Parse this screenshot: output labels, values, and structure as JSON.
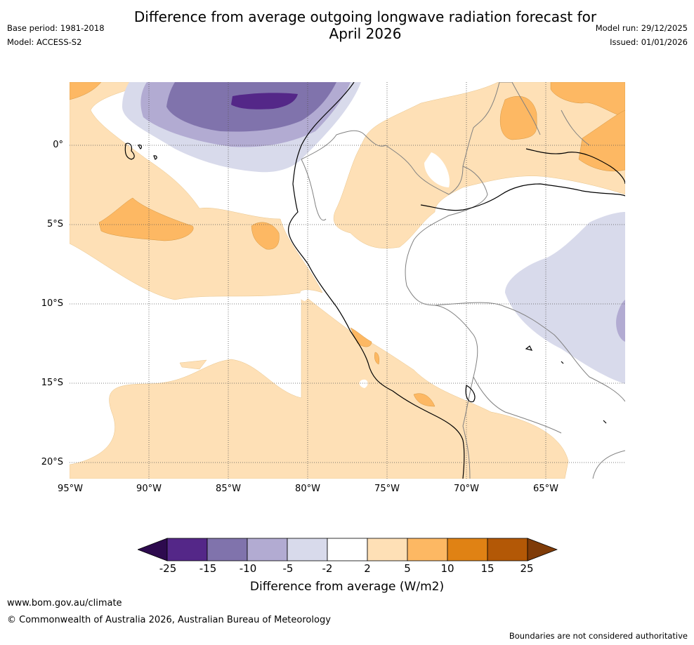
{
  "title": {
    "line1": "Difference from average outgoing longwave radiation forecast for",
    "line2": "April 2026"
  },
  "meta_left": {
    "base_period": "Base period: 1981-2018",
    "model": "Model: ACCESS-S2"
  },
  "meta_right": {
    "model_run": "Model run: 29/12/2025",
    "issued": "Issued: 01/01/2026"
  },
  "map": {
    "lat_labels": [
      "0°",
      "5°S",
      "10°S",
      "15°S",
      "20°S"
    ],
    "lon_labels": [
      "95°W",
      "90°W",
      "85°W",
      "80°W",
      "75°W",
      "70°W",
      "65°W"
    ],
    "extent": {
      "lon_min": -95,
      "lon_max": -60,
      "lat_min": -21,
      "lat_max": 4
    },
    "gridlines": true,
    "region": "Western South America and adjacent eastern Pacific"
  },
  "colorbar": {
    "bins": [
      {
        "range": "< -25",
        "color": "#2d0a4e"
      },
      {
        "range": "-25 to -15",
        "color": "#542788"
      },
      {
        "range": "-15 to -10",
        "color": "#8073ac"
      },
      {
        "range": "-10 to -5",
        "color": "#b2abd2"
      },
      {
        "range": "-5 to -2",
        "color": "#d8daeb"
      },
      {
        "range": "-2 to 2",
        "color": "#ffffff"
      },
      {
        "range": "2 to 5",
        "color": "#fee0b6"
      },
      {
        "range": "5 to 10",
        "color": "#fdb863"
      },
      {
        "range": "10 to 15",
        "color": "#e08214"
      },
      {
        "range": "15 to 25",
        "color": "#b35806"
      },
      {
        "range": "> 25",
        "color": "#7f3b08"
      }
    ],
    "tick_labels": [
      "-25",
      "-15",
      "-10",
      "-5",
      "-2",
      "2",
      "5",
      "10",
      "15",
      "25"
    ],
    "title": "Difference from average (W/m2)"
  },
  "footer": {
    "url": "www.bom.gov.au/climate",
    "copyright": "© Commonwealth of Australia 2026, Australian Bureau of Meteorology",
    "disclaimer": "Boundaries are not considered authoritative"
  },
  "colors": {
    "grid": "#555555",
    "coast": "#000000",
    "borders": "#808080"
  }
}
